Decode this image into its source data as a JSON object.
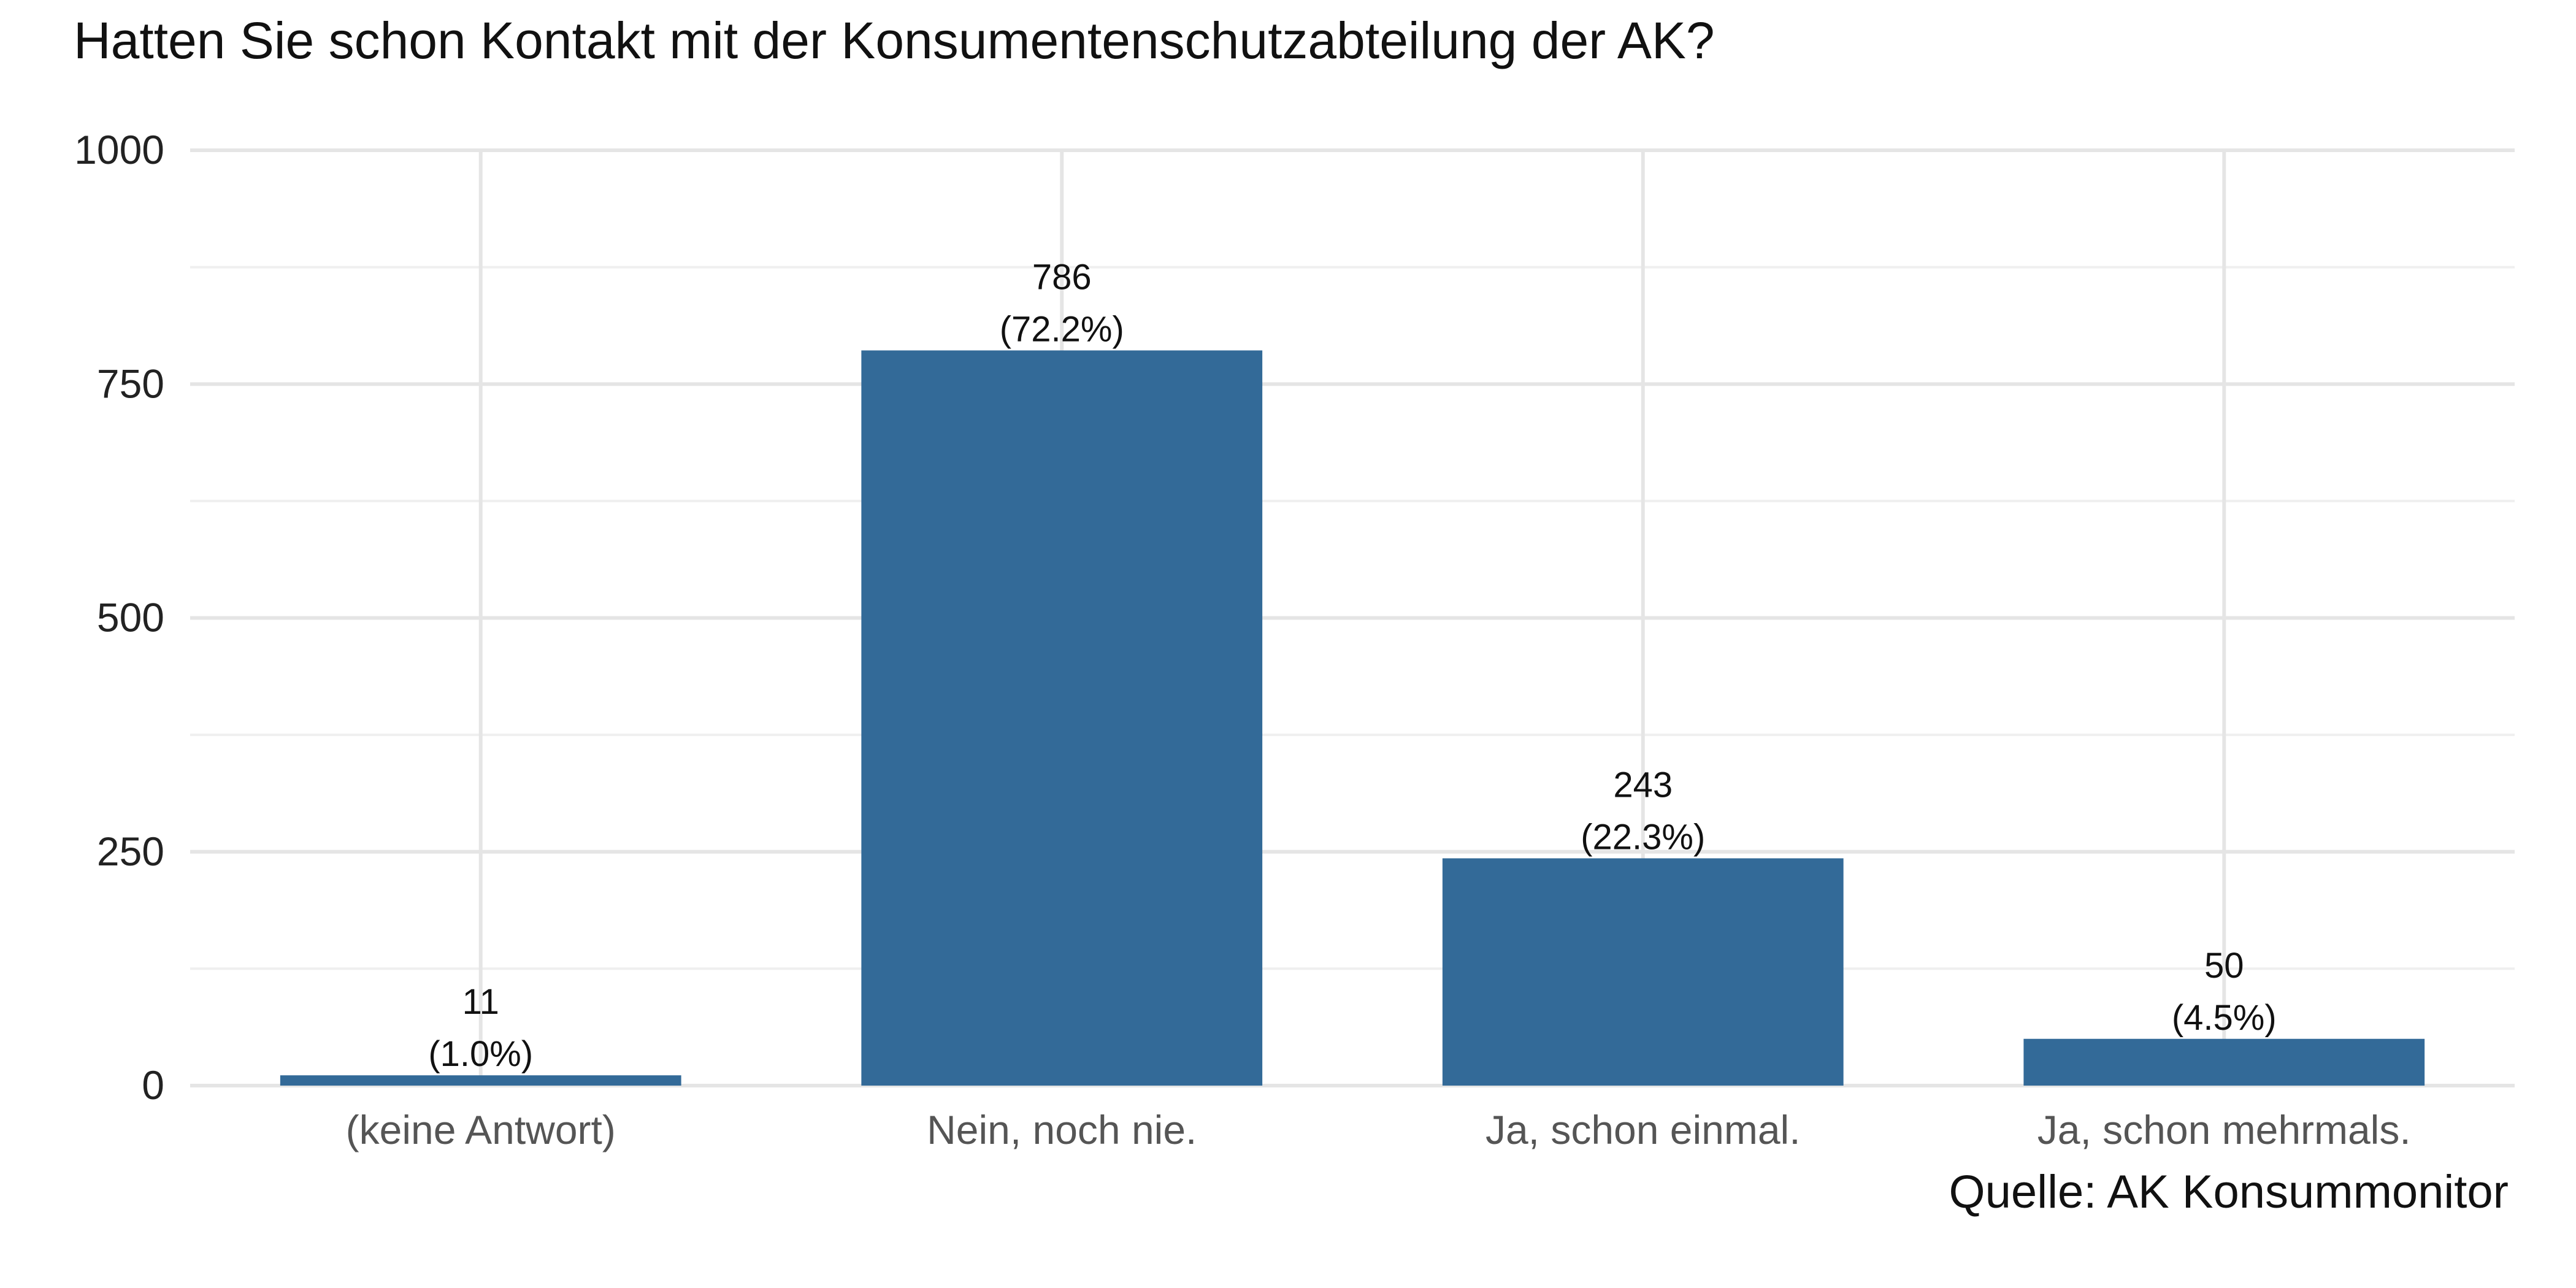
{
  "title": "Hatten Sie schon Kontakt mit der Konsumentenschutzabteilung der AK?",
  "caption": "Quelle: AK Konsummonitor",
  "chart_data": {
    "type": "bar",
    "categories": [
      "(keine Antwort)",
      "Nein, noch nie.",
      "Ja, schon einmal.",
      "Ja, schon mehrmals."
    ],
    "values": [
      11,
      786,
      243,
      50
    ],
    "data_labels": [
      [
        "11",
        "(1.0%)"
      ],
      [
        "786",
        "(72.2%)"
      ],
      [
        "243",
        "(22.3%)"
      ],
      [
        "50",
        "(4.5%)"
      ]
    ],
    "ylim": [
      0,
      1000
    ],
    "yticks": [
      0,
      250,
      500,
      750,
      1000
    ],
    "xlabel": "",
    "ylabel": "",
    "grid": true,
    "bar_color": "#336A98"
  }
}
